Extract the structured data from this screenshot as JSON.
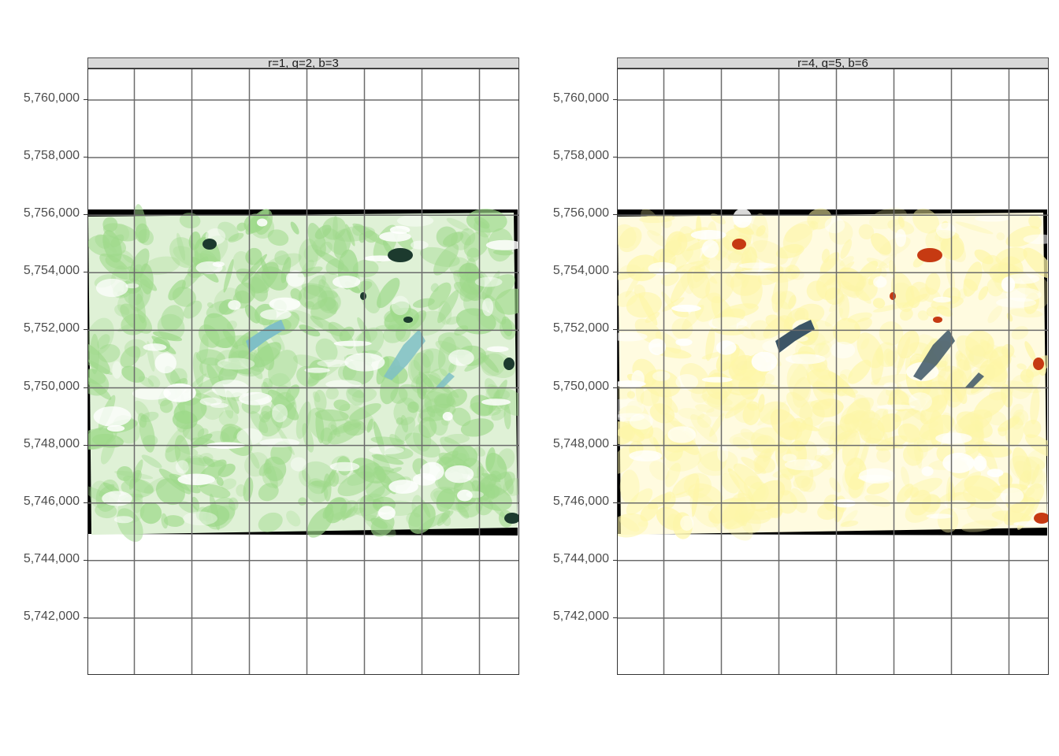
{
  "panels": [
    {
      "strip_label": "r=1, g=2, b=3",
      "palette": "green"
    },
    {
      "strip_label": "r=4, g=5, b=6",
      "palette": "yellow"
    }
  ],
  "y_axis": {
    "ticks": [
      "5,760,000",
      "5,758,000",
      "5,756,000",
      "5,754,000",
      "5,752,000",
      "5,750,000",
      "5,748,000",
      "5,746,000",
      "5,744,000",
      "5,742,000"
    ],
    "tick_values": [
      5760000,
      5758000,
      5756000,
      5754000,
      5752000,
      5750000,
      5748000,
      5746000,
      5744000,
      5742000
    ]
  },
  "colors": {
    "green_base": "#9ed98a",
    "green_light": "#dff1d6",
    "yellow_base": "#fdf6a8",
    "yellow_light": "#fffbe0",
    "dark_patch": "#1c3a2e",
    "red_patch": "#c63a12",
    "water_green": "#7fbfc6",
    "water_yellow": "#3c5566",
    "grid": "#6b6b6b",
    "border": "#000000"
  }
}
